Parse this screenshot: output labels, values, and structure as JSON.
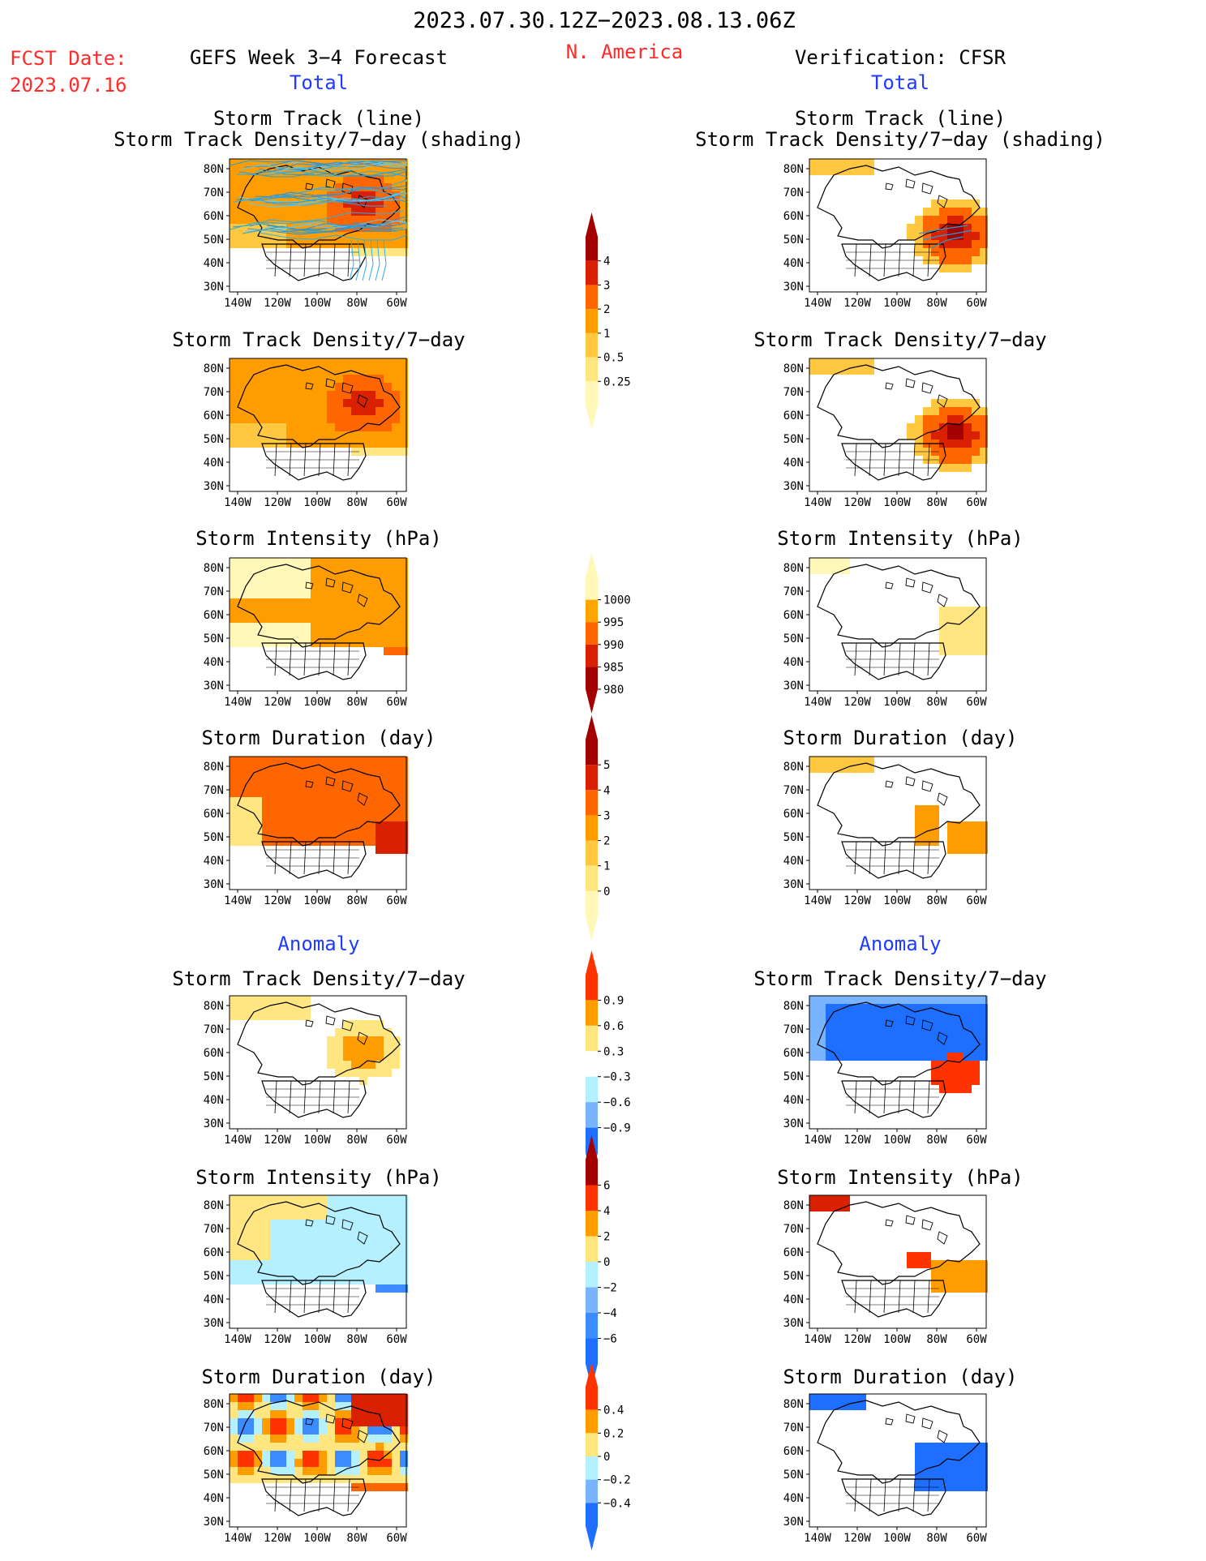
{
  "header": {
    "period": "2023.07.30.12Z−2023.08.13.06Z",
    "fcst_label": "FCST Date:",
    "fcst_date": "2023.07.16",
    "left_title": "GEFS Week 3−4 Forecast",
    "region": "N. America",
    "right_title": "Verification: CFSR"
  },
  "sections": {
    "left_total": "Total",
    "right_total": "Total",
    "left_anomaly": "Anomaly",
    "right_anomaly": "Anomaly"
  },
  "panel_titles": {
    "track_line": "Storm Track (line)",
    "track_shading": "Storm Track Density/7−day (shading)",
    "density": "Storm Track Density/7−day",
    "intensity": "Storm Intensity (hPa)",
    "duration": "Storm Duration (day)"
  },
  "map_axes": {
    "lat_labels": [
      "80N",
      "70N",
      "60N",
      "50N",
      "40N",
      "30N"
    ],
    "lon_labels": [
      "140W",
      "120W",
      "100W",
      "80W",
      "60W"
    ]
  },
  "colorbars": [
    {
      "name": "density-total",
      "labels": [
        "4",
        "3",
        "2",
        "1",
        "0.5",
        "0.25"
      ],
      "colors": [
        "#a50000",
        "#d92000",
        "#ff6600",
        "#ff9d00",
        "#ffc840",
        "#ffe680",
        "#fff8b8"
      ]
    },
    {
      "name": "intensity-total",
      "labels": [
        "1000",
        "995",
        "990",
        "985",
        "980"
      ],
      "colors": [
        "#fff8b8",
        "#ffa500",
        "#ff6600",
        "#d92000",
        "#a50000"
      ]
    },
    {
      "name": "duration-total",
      "labels": [
        "5",
        "4",
        "3",
        "2",
        "1",
        "0"
      ],
      "colors": [
        "#a50000",
        "#d92000",
        "#ff6600",
        "#ff9d00",
        "#ffc840",
        "#ffe680",
        "#fff8b8"
      ]
    },
    {
      "name": "density-anomaly",
      "labels": [
        "0.9",
        "0.6",
        "0.3",
        "−0.3",
        "−0.6",
        "−0.9"
      ],
      "colors": [
        "#ff3300",
        "#ff9d00",
        "#ffe680",
        "#ffffff",
        "#b4f0ff",
        "#78b4ff",
        "#1e6eff"
      ]
    },
    {
      "name": "intensity-anomaly",
      "labels": [
        "6",
        "4",
        "2",
        "0",
        "−2",
        "−4",
        "−6"
      ],
      "colors": [
        "#a50000",
        "#ff3300",
        "#ff9d00",
        "#ffe680",
        "#b4f0ff",
        "#78b4ff",
        "#3c8cff",
        "#1e6eff"
      ]
    },
    {
      "name": "duration-anomaly",
      "labels": [
        "0.4",
        "0.2",
        "0",
        "−0.2",
        "−0.4"
      ],
      "colors": [
        "#ff3300",
        "#ff9d00",
        "#ffe680",
        "#b4f0ff",
        "#78b4ff",
        "#1e6eff"
      ]
    }
  ]
}
